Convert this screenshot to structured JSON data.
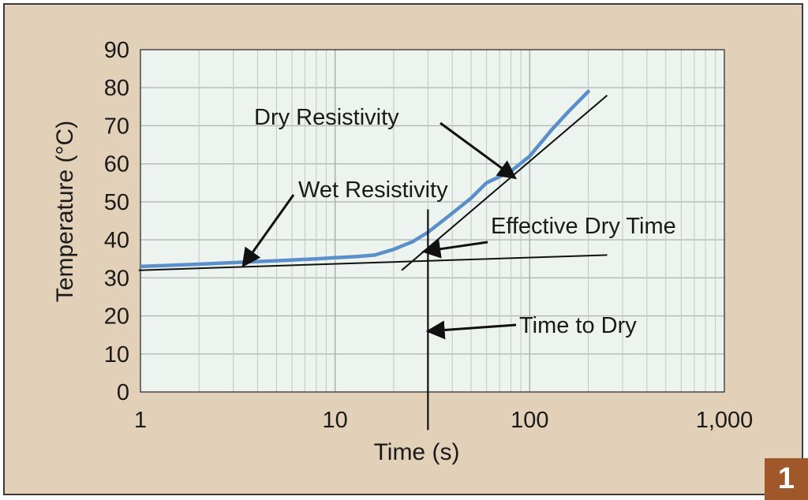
{
  "chart_data": {
    "type": "line",
    "x_scale": "log",
    "xlabel": "Time (s)",
    "ylabel": "Temperature (°C)",
    "xlim": [
      1,
      1000
    ],
    "ylim": [
      0,
      90
    ],
    "x_ticks": [
      {
        "value": 1,
        "label": "1"
      },
      {
        "value": 10,
        "label": "10"
      },
      {
        "value": 100,
        "label": "100"
      },
      {
        "value": 1000,
        "label": "1,000"
      }
    ],
    "y_ticks": [
      0,
      10,
      20,
      30,
      40,
      50,
      60,
      70,
      80,
      90
    ],
    "grid": true,
    "series": [
      {
        "color": "#5b8fc9",
        "x": [
          1,
          2,
          3,
          5,
          8,
          10,
          13,
          16,
          20,
          25,
          30,
          40,
          50,
          60,
          80,
          100,
          130,
          160,
          200
        ],
        "y": [
          33,
          33.6,
          34,
          34.5,
          35,
          35.3,
          35.6,
          36,
          37.5,
          39.5,
          42,
          47,
          51,
          55,
          58,
          62,
          69,
          74,
          79
        ]
      }
    ],
    "fit_lines": [
      {
        "x": [
          0.98,
          250
        ],
        "y": [
          32,
          36
        ]
      },
      {
        "x": [
          22,
          250
        ],
        "y": [
          32,
          78
        ]
      }
    ],
    "vertical_line": {
      "x": 30,
      "y": [
        -10,
        48
      ]
    },
    "annotations": [
      {
        "text": "Dry Resistivity",
        "arrow_to": [
          83,
          56.5
        ]
      },
      {
        "text": "Wet Resistivity",
        "arrow_to": [
          3.4,
          33.5
        ]
      },
      {
        "text": "Effective Dry Time",
        "arrow_to": [
          29,
          37
        ]
      },
      {
        "text": "Time to Dry",
        "arrow_to": [
          30.5,
          16
        ]
      }
    ]
  },
  "figure": {
    "number": "1",
    "background": "#e3d0b9",
    "plot_background": "#edf3ef",
    "badge_color": "#a0582a"
  }
}
